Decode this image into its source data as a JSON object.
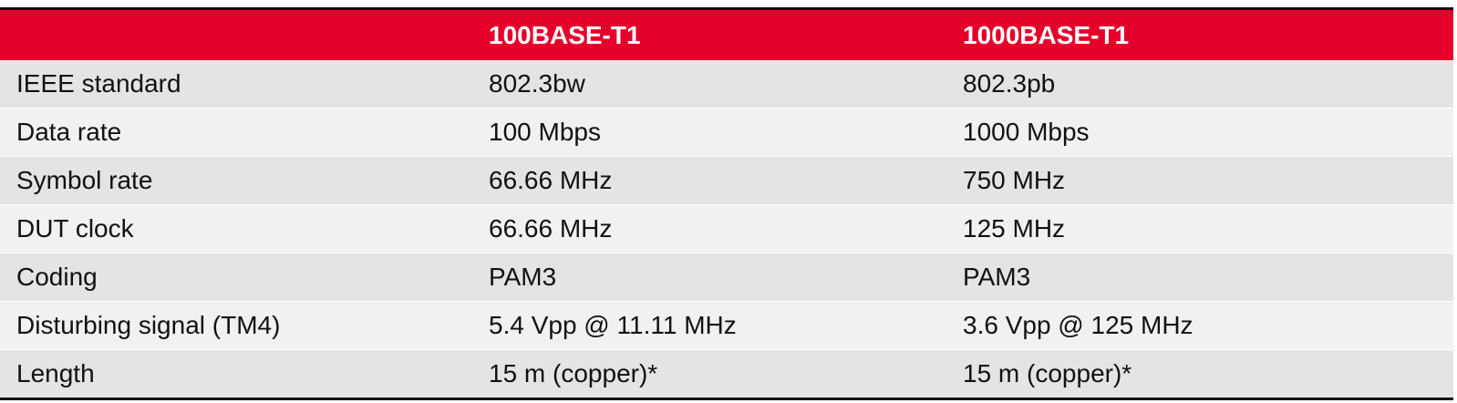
{
  "table": {
    "headers": [
      "",
      "100BASE-T1",
      "1000BASE-T1"
    ],
    "rows": [
      {
        "label": "IEEE standard",
        "a": "802.3bw",
        "b": "802.3pb"
      },
      {
        "label": "Data rate",
        "a": "100 Mbps",
        "b": "1000 Mbps"
      },
      {
        "label": "Symbol rate",
        "a": "66.66 MHz",
        "b": "750 MHz"
      },
      {
        "label": "DUT clock",
        "a": "66.66 MHz",
        "b": "125 MHz"
      },
      {
        "label": "Coding",
        "a": "PAM3",
        "b": "PAM3"
      },
      {
        "label": "Disturbing signal (TM4)",
        "a": "5.4 Vpp @ 11.11 MHz",
        "b": "3.6 Vpp @ 125 MHz"
      },
      {
        "label": "Length",
        "a": "15 m (copper)*",
        "b": "15 m (copper)*"
      }
    ]
  },
  "colors": {
    "header_bg": "#e5002b",
    "header_text": "#ffffff",
    "row_odd": "#e4e4e4",
    "row_even": "#f1f1f1",
    "rule": "#111111"
  }
}
